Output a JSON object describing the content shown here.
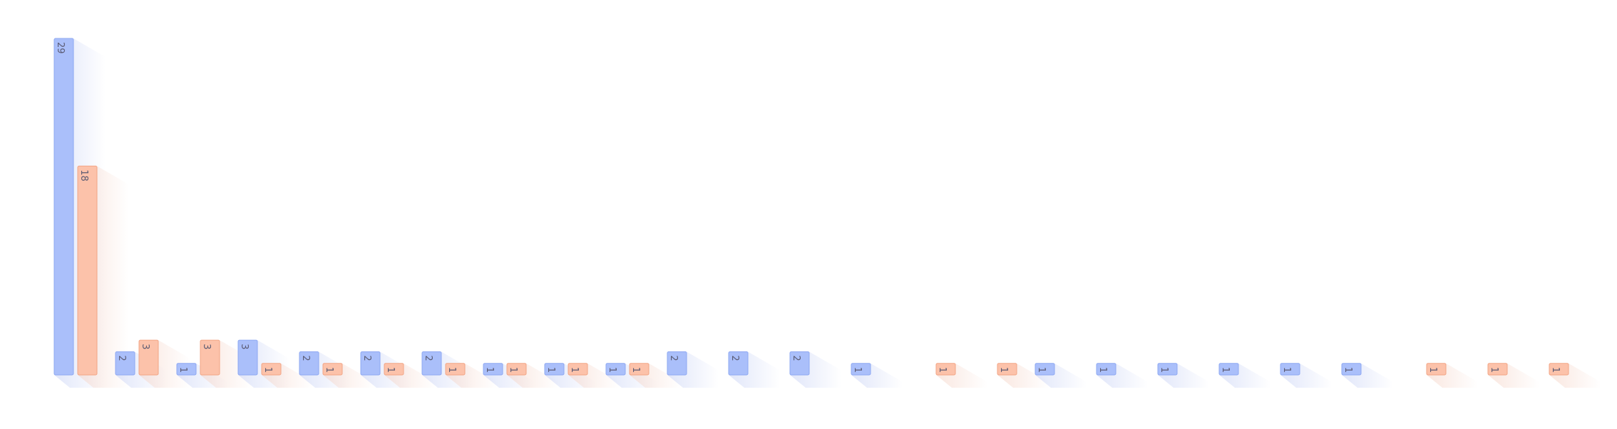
{
  "chart_data": {
    "type": "bar",
    "categories": [
      "",
      "",
      "",
      "",
      "",
      "",
      "",
      "",
      "",
      "",
      "",
      "",
      "",
      "",
      "",
      "",
      "",
      "",
      "",
      "",
      "",
      "",
      "",
      "",
      "",
      ""
    ],
    "series": [
      {
        "values": [
          29,
          2,
          1,
          3,
          2,
          2,
          2,
          1,
          1,
          1,
          2,
          2,
          2,
          1,
          null,
          null,
          1,
          1,
          1,
          1,
          1,
          1,
          null,
          null,
          null,
          null
        ]
      },
      {
        "values": [
          18,
          3,
          3,
          1,
          1,
          1,
          1,
          1,
          1,
          1,
          null,
          null,
          null,
          null,
          1,
          1,
          null,
          null,
          null,
          null,
          null,
          null,
          1,
          1,
          1,
          null
        ]
      }
    ],
    "ylim": [
      0,
      29
    ],
    "grid": false,
    "legend": "none",
    "data_labels": true,
    "colors": {
      "series_fill": [
        "#aabffa",
        "#fcc2aa"
      ],
      "series_stroke": [
        "#8ea8f2",
        "#f2a585"
      ],
      "shadow": [
        "#c8d2f5",
        "#f5d3c6"
      ]
    }
  }
}
